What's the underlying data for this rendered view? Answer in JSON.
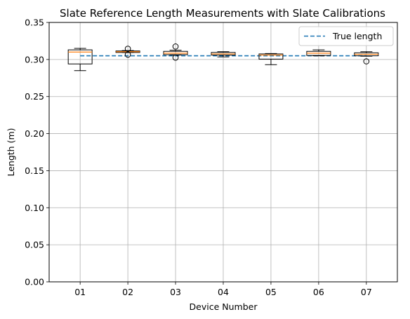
{
  "chart_data": {
    "type": "box",
    "title": "Slate Reference Length Measurements with Slate Calibrations",
    "xlabel": "Device Number",
    "ylabel": "Length (m)",
    "ylim": [
      0.0,
      0.35
    ],
    "yticks": [
      "0.00",
      "0.05",
      "0.10",
      "0.15",
      "0.20",
      "0.25",
      "0.30",
      "0.35"
    ],
    "grid": true,
    "legend": {
      "placement": "top-right",
      "entries": [
        "True length"
      ]
    },
    "reference_line": {
      "name": "True length",
      "value": 0.305,
      "style": "dashed",
      "color": "#1f77b4"
    },
    "box_color": "#000000",
    "median_color": "#ff7f0e",
    "categories": [
      "01",
      "02",
      "03",
      "04",
      "05",
      "06",
      "07"
    ],
    "boxes": [
      {
        "label": "01",
        "whisker_low": 0.285,
        "q1": 0.294,
        "median": 0.31,
        "q3": 0.313,
        "whisker_high": 0.315,
        "outliers": []
      },
      {
        "label": "02",
        "whisker_low": 0.3095,
        "q1": 0.3095,
        "median": 0.3105,
        "q3": 0.3115,
        "whisker_high": 0.312,
        "outliers": [
          0.3145,
          0.3065
        ]
      },
      {
        "label": "03",
        "whisker_low": 0.306,
        "q1": 0.3065,
        "median": 0.3085,
        "q3": 0.311,
        "whisker_high": 0.3125,
        "outliers": [
          0.3175,
          0.3025
        ]
      },
      {
        "label": "04",
        "whisker_low": 0.3035,
        "q1": 0.306,
        "median": 0.3075,
        "q3": 0.3095,
        "whisker_high": 0.3105,
        "outliers": []
      },
      {
        "label": "05",
        "whisker_low": 0.293,
        "q1": 0.3005,
        "median": 0.306,
        "q3": 0.3075,
        "whisker_high": 0.308,
        "outliers": []
      },
      {
        "label": "06",
        "whisker_low": 0.305,
        "q1": 0.3055,
        "median": 0.3085,
        "q3": 0.311,
        "whisker_high": 0.313,
        "outliers": []
      },
      {
        "label": "07",
        "whisker_low": 0.3045,
        "q1": 0.305,
        "median": 0.307,
        "q3": 0.309,
        "whisker_high": 0.3105,
        "outliers": [
          0.2975
        ]
      }
    ]
  }
}
